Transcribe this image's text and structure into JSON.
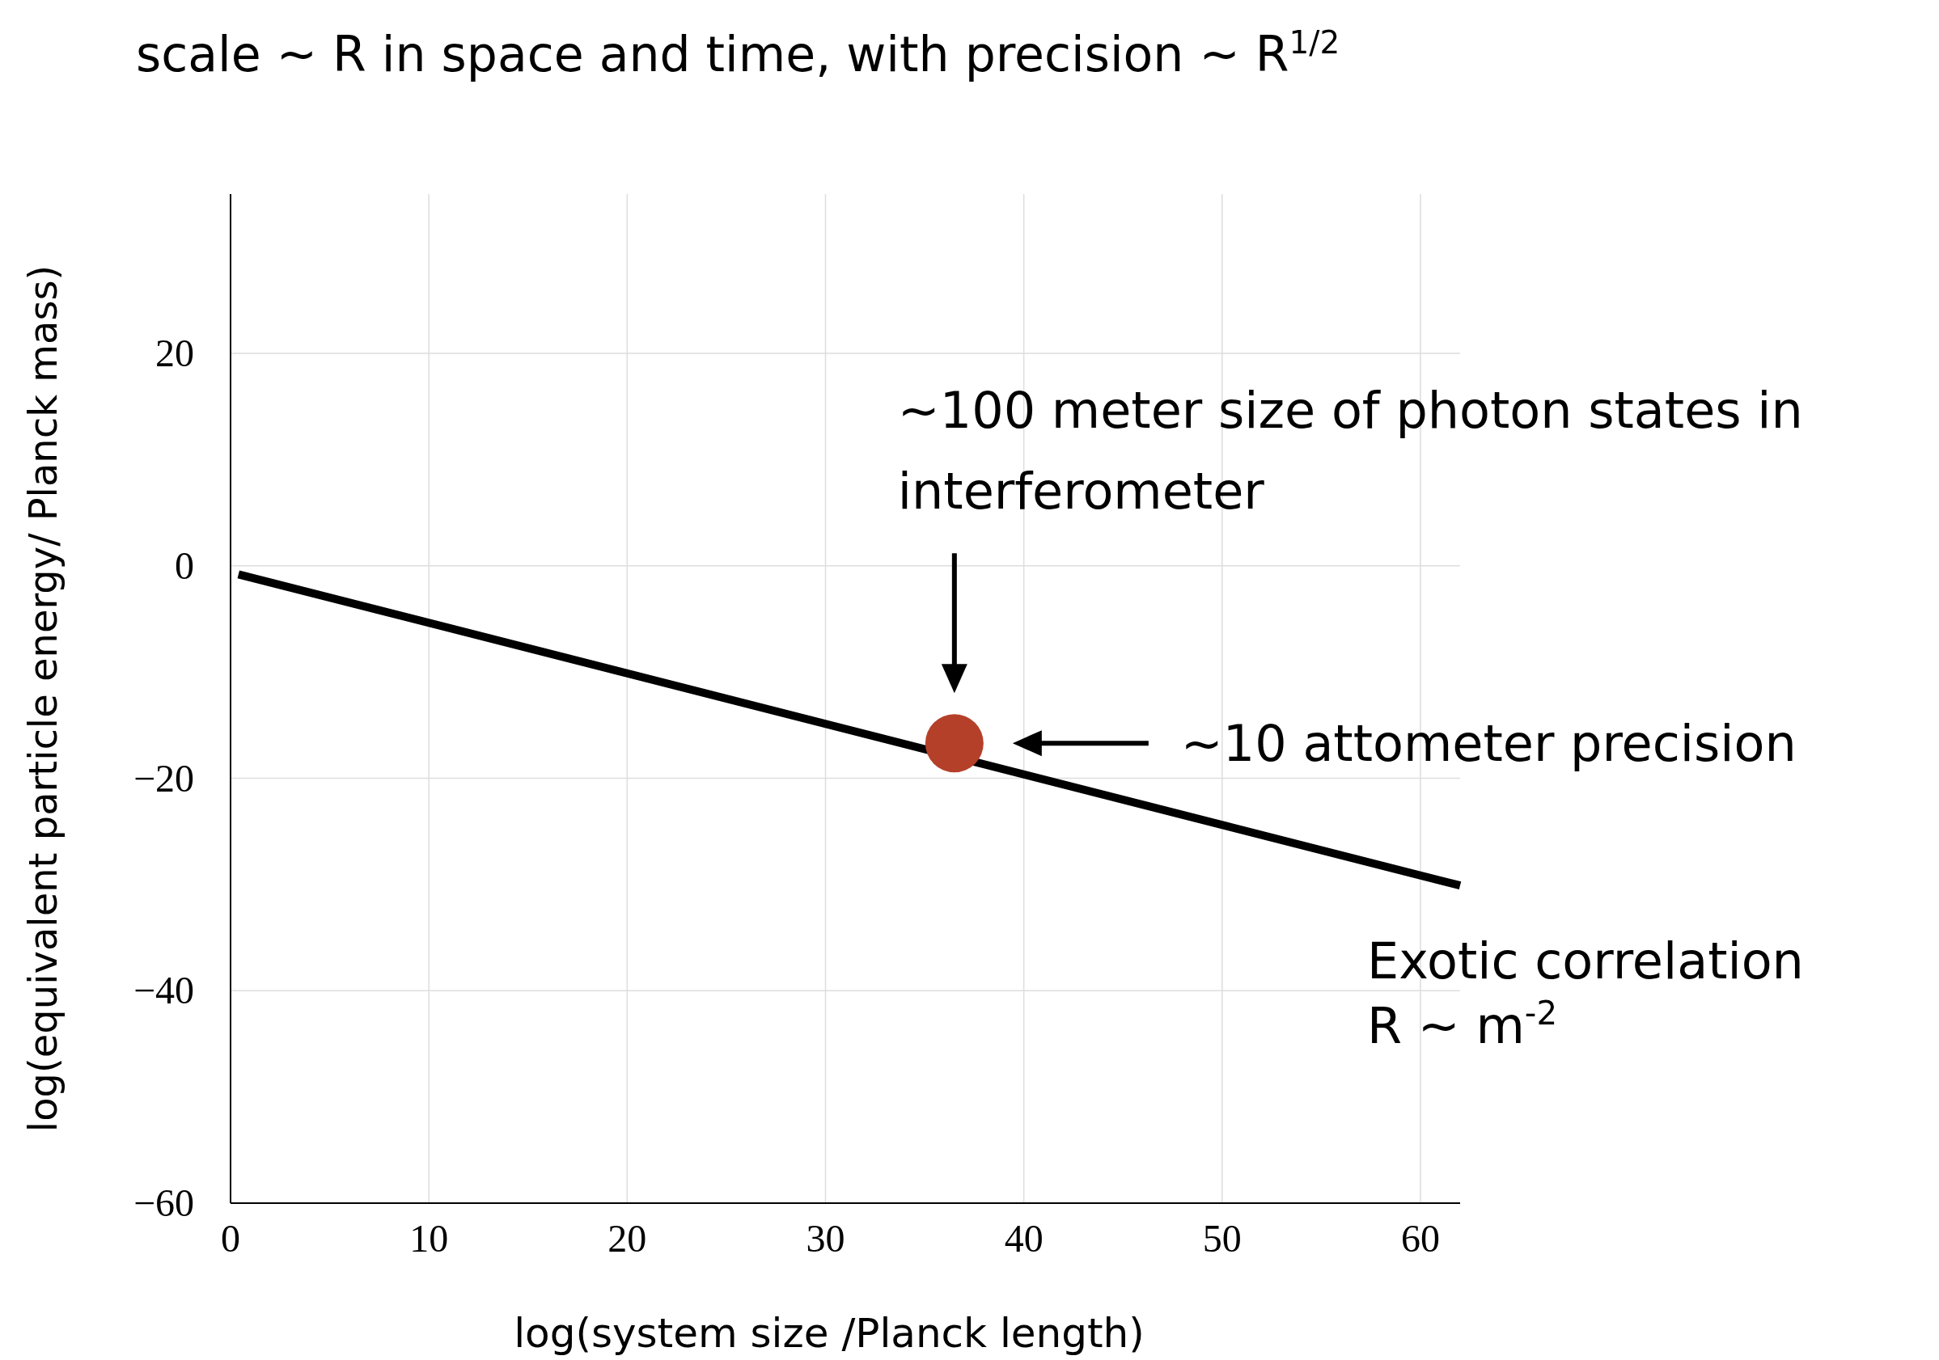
{
  "chart_data": {
    "type": "line",
    "title": "scale ~ R in space and time, with precision ~ R$^{1/2}$",
    "xlabel": "log(system size /Planck length)",
    "ylabel": "log(equivalent  particle  energy/ Planck mass)",
    "xlim": [
      0,
      62
    ],
    "ylim": [
      -60,
      35
    ],
    "xticks": [
      0,
      10,
      20,
      30,
      40,
      50,
      60
    ],
    "yticks": [
      -60,
      -40,
      -20,
      0,
      20
    ],
    "grid": true,
    "series": [
      {
        "name": "Exotic correlation R ~ m$^{-2}$",
        "color": "#000000",
        "x": [
          0.4,
          62
        ],
        "values": [
          -0.8,
          -30.1
        ],
        "marker": "none",
        "line_style": "solid"
      },
      {
        "type": "scatter",
        "color": "#b5402a",
        "x": [
          36.5
        ],
        "values": [
          -16.7
        ],
        "marker": "circle"
      }
    ],
    "annotations": [
      "~100 meter size of photon states in interferometer",
      "~10 attometer precision"
    ]
  }
}
